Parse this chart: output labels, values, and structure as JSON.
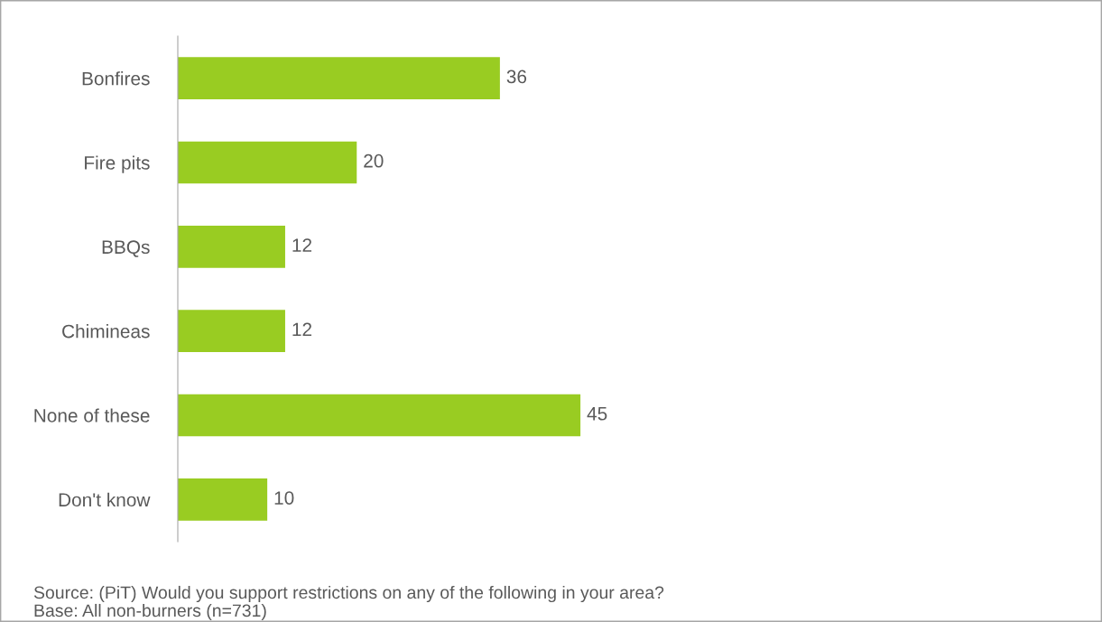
{
  "chart_data": {
    "type": "bar",
    "orientation": "horizontal",
    "categories": [
      "Bonfires",
      "Fire pits",
      "BBQs",
      "Chimineas",
      "None of these",
      "Don't know"
    ],
    "values": [
      36,
      20,
      12,
      12,
      45,
      10
    ],
    "color": "#99cc22",
    "data_labels": true,
    "grid": false,
    "annotations": [
      "Source: (PiT) Would you support restrictions on any of the following in your area?",
      "Base: All non-burners (n=731)"
    ]
  }
}
